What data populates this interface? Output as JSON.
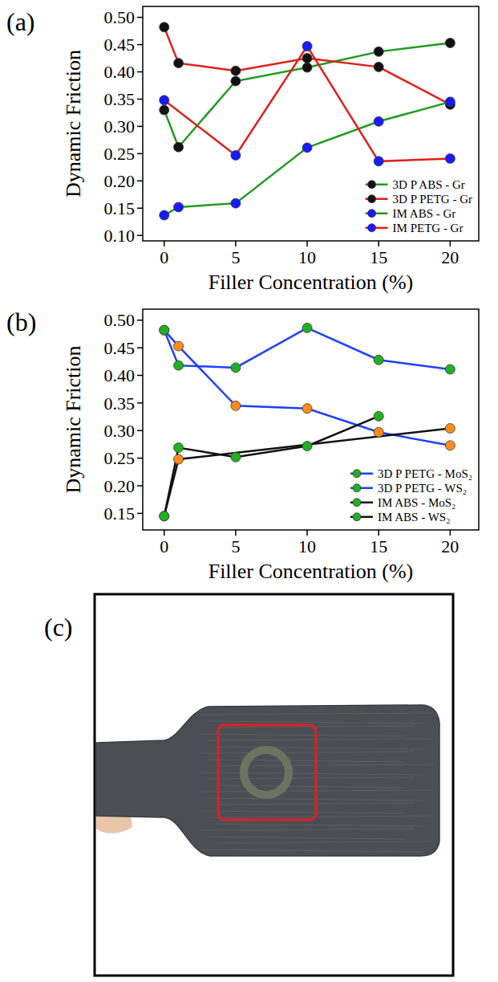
{
  "panel_labels": [
    "(a)",
    "(b)",
    "(c)"
  ],
  "chart_data": [
    {
      "type": "line",
      "x_label": "Filler Concentration (%)",
      "y_label": "Dynamic Friction",
      "xlim": [
        -1.5,
        22
      ],
      "ylim": [
        0.09,
        0.52
      ],
      "xticks": [
        0,
        5,
        10,
        15,
        20
      ],
      "yticks": [
        {
          "value": 0.1,
          "label": "0.10"
        },
        {
          "value": 0.15,
          "label": "0.15"
        },
        {
          "value": 0.2,
          "label": "0.20"
        },
        {
          "value": 0.25,
          "label": "0.25"
        },
        {
          "value": 0.3,
          "label": "0.30"
        },
        {
          "value": 0.35,
          "label": "0.35"
        },
        {
          "value": 0.4,
          "label": "0.40"
        },
        {
          "value": 0.45,
          "label": "0.45"
        },
        {
          "value": 0.5,
          "label": "0.50"
        }
      ],
      "legend": "lower right",
      "marker": "circle",
      "series": [
        {
          "name": "3D P ABS - Gr",
          "color": "#1f9a1f",
          "colors": [
            "#111111",
            "#111111",
            "#111111",
            "#111111",
            "#111111",
            "#111111"
          ],
          "x": [
            0,
            1,
            5,
            10,
            15,
            20
          ],
          "values": [
            0.33,
            0.262,
            0.383,
            0.408,
            0.437,
            0.453
          ]
        },
        {
          "name": "3D P PETG - Gr",
          "color": "#e0201b",
          "colors": [
            "#111111",
            "#111111",
            "#111111",
            "#111111",
            "#111111",
            "#111111"
          ],
          "x": [
            0,
            1,
            5,
            10,
            15,
            20
          ],
          "values": [
            0.482,
            0.416,
            0.402,
            0.425,
            0.409,
            0.34
          ]
        },
        {
          "name": "IM ABS - Gr",
          "color": "#1f9a1f",
          "colors": [
            "#1a1aff",
            "#1a1aff",
            "#1a1aff",
            "#1a1aff",
            "#1a1aff",
            "#1a1aff"
          ],
          "x": [
            0,
            1,
            5,
            10,
            15,
            20
          ],
          "values": [
            0.137,
            0.152,
            0.159,
            0.261,
            0.309,
            0.345
          ]
        },
        {
          "name": "IM PETG - Gr",
          "color": "#e0201b",
          "colors": [
            "#1a1aff",
            "#1a1aff",
            "#1a1aff",
            "#1a1aff",
            "#1a1aff"
          ],
          "x": [
            0,
            5,
            10,
            15,
            20
          ],
          "values": [
            0.348,
            0.247,
            0.447,
            0.236,
            0.241
          ]
        }
      ]
    },
    {
      "type": "line",
      "x_label": "Filler Concentration (%)",
      "y_label": "Dynamic Friction",
      "xlim": [
        -1.5,
        22
      ],
      "ylim": [
        0.12,
        0.52
      ],
      "xticks": [
        0,
        5,
        10,
        15,
        20
      ],
      "yticks": [
        {
          "value": 0.15,
          "label": "0.15"
        },
        {
          "value": 0.2,
          "label": "0.20"
        },
        {
          "value": 0.25,
          "label": "0.25"
        },
        {
          "value": 0.3,
          "label": "0.30"
        },
        {
          "value": 0.35,
          "label": "0.35"
        },
        {
          "value": 0.4,
          "label": "0.40"
        },
        {
          "value": 0.45,
          "label": "0.45"
        },
        {
          "value": 0.5,
          "label": "0.50"
        }
      ],
      "legend": "lower right",
      "marker": "circle",
      "series": [
        {
          "name": "3D P PETG - MoS₂",
          "color": "#1f3fff",
          "colors": [
            "#22b022",
            "#ff8c1a",
            "#ff8c1a",
            "#ff8c1a",
            "#ff8c1a",
            "#ff8c1a"
          ],
          "x": [
            0,
            1,
            5,
            10,
            15,
            20
          ],
          "values": [
            0.482,
            0.453,
            0.345,
            0.34,
            0.297,
            0.273
          ]
        },
        {
          "name": "3D P PETG - WS₂",
          "color": "#1f3fff",
          "colors": [
            "#22b022",
            "#22b022",
            "#22b022",
            "#22b022",
            "#22b022",
            "#22b022"
          ],
          "x": [
            0,
            1,
            5,
            10,
            15,
            20
          ],
          "values": [
            0.482,
            0.418,
            0.414,
            0.486,
            0.428,
            0.411
          ]
        },
        {
          "name": "IM ABS - MoS₂",
          "color": "#111111",
          "colors": [
            "#22b022",
            "#ff8c1a",
            "#ff8c1a"
          ],
          "x": [
            0,
            1,
            20
          ],
          "values": [
            0.145,
            0.248,
            0.304
          ]
        },
        {
          "name": "IM ABS - WS₂",
          "color": "#111111",
          "colors": [
            "#22b022",
            "#22b022",
            "#22b022",
            "#22b022",
            "#22b022"
          ],
          "x": [
            0,
            1,
            5,
            10,
            15
          ],
          "values": [
            0.145,
            0.269,
            0.252,
            0.272,
            0.326
          ]
        }
      ]
    }
  ]
}
